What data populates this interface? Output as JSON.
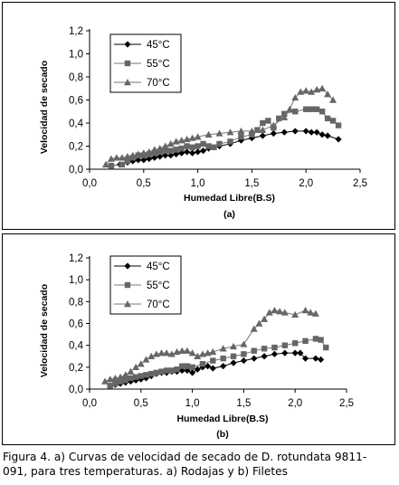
{
  "caption": {
    "line1": "Figura 4. a) Curvas de velocidad de secado de D. rotundata 9811-",
    "line2": "091, para tres temperaturas.  a) Rodajas y b) Filetes"
  },
  "colors": {
    "series_45": "#000000",
    "series_55": "#666666",
    "series_70": "#666666",
    "line_45": "#000000",
    "line_55": "#777777",
    "line_70": "#777777"
  },
  "chart_data": [
    {
      "type": "line",
      "sublabel": "(a)",
      "xlabel": "Humedad Libre(B.S)",
      "ylabel": "Velocidad de secado",
      "xlim": [
        0,
        2.5
      ],
      "ylim": [
        0,
        1.2
      ],
      "xticks": [
        "0,0",
        "0,5",
        "1,0",
        "1,5",
        "2,0",
        "2,5"
      ],
      "yticks": [
        "0,0",
        "0,2",
        "0,4",
        "0,6",
        "0,8",
        "1,0",
        "1,2"
      ],
      "legend": "top-left",
      "series": [
        {
          "name": "45°C",
          "marker": "diamond",
          "x": [
            0.2,
            0.28,
            0.35,
            0.4,
            0.45,
            0.5,
            0.55,
            0.6,
            0.65,
            0.7,
            0.75,
            0.8,
            0.85,
            0.9,
            0.95,
            1.0,
            1.05,
            1.1,
            1.2,
            1.3,
            1.4,
            1.5,
            1.6,
            1.7,
            1.8,
            1.9,
            2.0,
            2.05,
            2.1,
            2.15,
            2.2,
            2.3
          ],
          "y": [
            0.03,
            0.04,
            0.06,
            0.07,
            0.08,
            0.08,
            0.09,
            0.1,
            0.11,
            0.12,
            0.12,
            0.13,
            0.14,
            0.15,
            0.14,
            0.15,
            0.16,
            0.18,
            0.2,
            0.22,
            0.25,
            0.27,
            0.29,
            0.31,
            0.32,
            0.33,
            0.33,
            0.32,
            0.32,
            0.3,
            0.29,
            0.26
          ]
        },
        {
          "name": "55°C",
          "marker": "square",
          "x": [
            0.2,
            0.3,
            0.35,
            0.4,
            0.45,
            0.5,
            0.55,
            0.6,
            0.65,
            0.7,
            0.75,
            0.8,
            0.85,
            0.9,
            0.95,
            1.0,
            1.05,
            1.1,
            1.15,
            1.2,
            1.3,
            1.4,
            1.5,
            1.55,
            1.6,
            1.65,
            1.7,
            1.75,
            1.8,
            1.9,
            2.0,
            2.05,
            2.1,
            2.15,
            2.2,
            2.25,
            2.3
          ],
          "y": [
            0.03,
            0.04,
            0.07,
            0.1,
            0.12,
            0.12,
            0.13,
            0.14,
            0.15,
            0.16,
            0.16,
            0.17,
            0.18,
            0.2,
            0.19,
            0.2,
            0.22,
            0.2,
            0.19,
            0.22,
            0.24,
            0.28,
            0.3,
            0.34,
            0.4,
            0.42,
            0.36,
            0.44,
            0.48,
            0.5,
            0.52,
            0.52,
            0.52,
            0.5,
            0.44,
            0.42,
            0.38
          ]
        },
        {
          "name": "70°C",
          "marker": "triangle",
          "x": [
            0.15,
            0.2,
            0.25,
            0.3,
            0.35,
            0.4,
            0.45,
            0.5,
            0.55,
            0.6,
            0.65,
            0.7,
            0.75,
            0.8,
            0.85,
            0.9,
            0.95,
            1.0,
            1.1,
            1.2,
            1.3,
            1.4,
            1.5,
            1.6,
            1.7,
            1.8,
            1.85,
            1.9,
            1.95,
            2.0,
            2.05,
            2.1,
            2.15,
            2.2,
            2.25
          ],
          "y": [
            0.04,
            0.09,
            0.1,
            0.1,
            0.11,
            0.12,
            0.13,
            0.14,
            0.15,
            0.17,
            0.18,
            0.2,
            0.22,
            0.24,
            0.25,
            0.26,
            0.27,
            0.28,
            0.3,
            0.31,
            0.32,
            0.33,
            0.33,
            0.34,
            0.38,
            0.45,
            0.52,
            0.62,
            0.67,
            0.68,
            0.67,
            0.69,
            0.7,
            0.65,
            0.6
          ]
        }
      ]
    },
    {
      "type": "line",
      "sublabel": "(b)",
      "xlabel": "Humedad Libre(B.S)",
      "ylabel": "Velocidad de secado",
      "xlim": [
        0,
        2.5
      ],
      "ylim": [
        0,
        1.2
      ],
      "xticks": [
        "0,0",
        "0,5",
        "1,0",
        "1,5",
        "2,0",
        "2,5"
      ],
      "yticks": [
        "0,0",
        "0,2",
        "0,4",
        "0,6",
        "0,8",
        "1,0",
        "1,2"
      ],
      "legend": "top-left",
      "series": [
        {
          "name": "45°C",
          "marker": "diamond",
          "x": [
            0.2,
            0.25,
            0.3,
            0.35,
            0.4,
            0.45,
            0.5,
            0.55,
            0.6,
            0.65,
            0.7,
            0.75,
            0.8,
            0.85,
            0.9,
            0.95,
            1.0,
            1.05,
            1.1,
            1.15,
            1.2,
            1.3,
            1.4,
            1.5,
            1.6,
            1.7,
            1.8,
            1.9,
            2.0,
            2.05,
            2.1,
            2.2,
            2.25
          ],
          "y": [
            0.03,
            0.04,
            0.05,
            0.06,
            0.07,
            0.08,
            0.09,
            0.1,
            0.12,
            0.14,
            0.15,
            0.15,
            0.16,
            0.16,
            0.17,
            0.17,
            0.15,
            0.18,
            0.2,
            0.21,
            0.19,
            0.21,
            0.24,
            0.26,
            0.28,
            0.3,
            0.32,
            0.33,
            0.33,
            0.33,
            0.28,
            0.28,
            0.27
          ]
        },
        {
          "name": "55°C",
          "marker": "square",
          "x": [
            0.2,
            0.25,
            0.3,
            0.35,
            0.4,
            0.45,
            0.5,
            0.55,
            0.6,
            0.65,
            0.7,
            0.75,
            0.8,
            0.85,
            0.9,
            0.95,
            1.0,
            1.1,
            1.2,
            1.3,
            1.4,
            1.5,
            1.6,
            1.7,
            1.8,
            1.9,
            2.0,
            2.1,
            2.2,
            2.25,
            2.3
          ],
          "y": [
            0.03,
            0.05,
            0.07,
            0.08,
            0.1,
            0.11,
            0.12,
            0.13,
            0.14,
            0.15,
            0.16,
            0.17,
            0.17,
            0.18,
            0.21,
            0.21,
            0.2,
            0.23,
            0.26,
            0.28,
            0.3,
            0.32,
            0.35,
            0.37,
            0.38,
            0.4,
            0.42,
            0.44,
            0.46,
            0.45,
            0.38
          ]
        },
        {
          "name": "70°C",
          "marker": "triangle",
          "x": [
            0.15,
            0.2,
            0.25,
            0.3,
            0.35,
            0.4,
            0.45,
            0.5,
            0.55,
            0.6,
            0.65,
            0.7,
            0.75,
            0.8,
            0.85,
            0.9,
            0.95,
            1.0,
            1.05,
            1.1,
            1.15,
            1.2,
            1.3,
            1.4,
            1.5,
            1.6,
            1.65,
            1.7,
            1.75,
            1.8,
            1.85,
            1.9,
            2.0,
            2.1,
            2.15,
            2.2
          ],
          "y": [
            0.07,
            0.09,
            0.1,
            0.11,
            0.13,
            0.16,
            0.2,
            0.23,
            0.27,
            0.3,
            0.32,
            0.33,
            0.33,
            0.32,
            0.34,
            0.35,
            0.35,
            0.33,
            0.3,
            0.32,
            0.33,
            0.34,
            0.37,
            0.39,
            0.41,
            0.55,
            0.6,
            0.64,
            0.7,
            0.72,
            0.71,
            0.7,
            0.68,
            0.72,
            0.7,
            0.69
          ]
        }
      ]
    }
  ]
}
